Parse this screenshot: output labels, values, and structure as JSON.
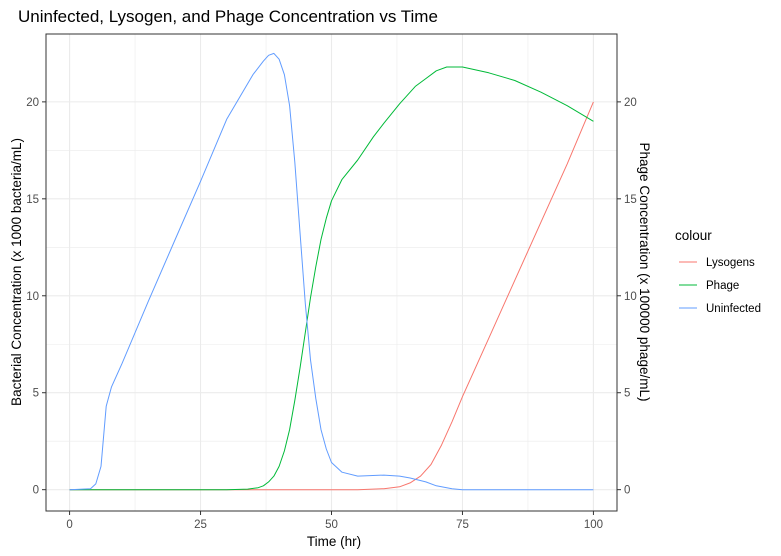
{
  "chart_data": {
    "type": "line",
    "title": "Uninfected, Lysogen, and Phage Concentration vs Time",
    "xlabel": "Time (hr)",
    "ylabel": "Bacterial Concentration (x 1000 bacteria/mL)",
    "y2label": "Phage Concentration (x 100000 phage/mL)",
    "xlim": [
      -4.5,
      104.5
    ],
    "ylim": [
      -1.1,
      23.5
    ],
    "xticks": [
      0,
      25,
      50,
      75,
      100
    ],
    "yticks": [
      0,
      5,
      10,
      15,
      20
    ],
    "y2ticks": [
      0,
      5,
      10,
      15,
      20
    ],
    "grid": true,
    "legend": {
      "title": "colour",
      "position": "right"
    },
    "series": [
      {
        "name": "Lysogens",
        "color": "#f8766d",
        "x": [
          0,
          55,
          60,
          63,
          65,
          67,
          69,
          71,
          73,
          75,
          80,
          85,
          90,
          95,
          100
        ],
        "y": [
          0,
          0,
          0.05,
          0.15,
          0.35,
          0.7,
          1.3,
          2.3,
          3.5,
          4.8,
          7.8,
          10.8,
          13.8,
          16.8,
          20.0
        ]
      },
      {
        "name": "Phage",
        "color": "#00ba38",
        "x": [
          0,
          30,
          34,
          36,
          37,
          38,
          39,
          40,
          41,
          42,
          43,
          44,
          45,
          46,
          47,
          48,
          49,
          50,
          52,
          55,
          58,
          60,
          63,
          66,
          68,
          70,
          72,
          75,
          80,
          85,
          90,
          95,
          100
        ],
        "y": [
          0,
          0,
          0.03,
          0.1,
          0.2,
          0.4,
          0.7,
          1.2,
          2.0,
          3.1,
          4.6,
          6.3,
          8.1,
          9.9,
          11.5,
          12.9,
          14.0,
          14.9,
          16.0,
          17.0,
          18.2,
          18.9,
          19.9,
          20.8,
          21.2,
          21.6,
          21.8,
          21.8,
          21.5,
          21.1,
          20.5,
          19.8,
          19.0
        ]
      },
      {
        "name": "Uninfected",
        "color": "#619cff",
        "x": [
          0,
          4,
          5,
          6,
          7,
          8,
          10,
          15,
          20,
          25,
          30,
          35,
          37,
          38,
          39,
          40,
          41,
          42,
          43,
          44,
          45,
          46,
          47,
          48,
          49,
          50,
          52,
          55,
          60,
          63,
          65,
          68,
          70,
          73,
          75,
          80,
          90,
          100
        ],
        "y": [
          0,
          0.05,
          0.3,
          1.2,
          4.3,
          5.3,
          6.5,
          9.7,
          12.8,
          15.9,
          19.1,
          21.4,
          22.1,
          22.4,
          22.5,
          22.2,
          21.4,
          19.8,
          16.9,
          13.2,
          9.6,
          6.7,
          4.7,
          3.1,
          2.1,
          1.4,
          0.9,
          0.7,
          0.75,
          0.7,
          0.6,
          0.4,
          0.2,
          0.05,
          0,
          0,
          0,
          0
        ]
      }
    ]
  }
}
